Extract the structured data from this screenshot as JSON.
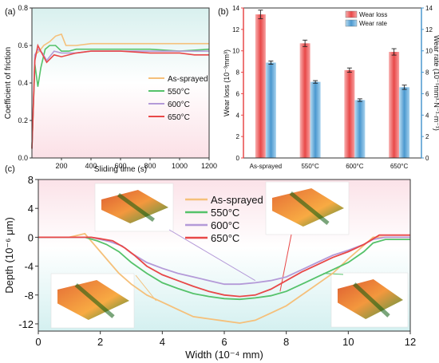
{
  "chart_data": [
    {
      "panel_label": "(a)",
      "type": "line",
      "xlabel": "Sliding time (s)",
      "ylabel": "Coefficient of friction",
      "xlim": [
        0,
        1200
      ],
      "ylim": [
        0.0,
        0.8
      ],
      "xticks": [
        200,
        400,
        600,
        800,
        1000,
        1200
      ],
      "yticks": [
        0.0,
        0.2,
        0.4,
        0.6,
        0.8
      ],
      "legend_position": "center-right",
      "background": "pink-to-cyan gradient",
      "series": [
        {
          "name": "As-sprayed",
          "color": "#f5c07a",
          "x": [
            0,
            20,
            50,
            80,
            120,
            160,
            200,
            230,
            260,
            300,
            400,
            600,
            800,
            1000,
            1200
          ],
          "y": [
            0.05,
            0.55,
            0.57,
            0.6,
            0.62,
            0.65,
            0.66,
            0.6,
            0.6,
            0.6,
            0.61,
            0.61,
            0.61,
            0.61,
            0.61
          ]
        },
        {
          "name": "550°C",
          "color": "#55c26a",
          "x": [
            0,
            20,
            40,
            60,
            90,
            120,
            160,
            200,
            250,
            300,
            400,
            600,
            800,
            1000,
            1200
          ],
          "y": [
            0.05,
            0.5,
            0.38,
            0.48,
            0.58,
            0.6,
            0.6,
            0.57,
            0.57,
            0.58,
            0.58,
            0.58,
            0.58,
            0.57,
            0.58
          ]
        },
        {
          "name": "600°C",
          "color": "#b49ad8",
          "x": [
            0,
            20,
            40,
            70,
            100,
            150,
            200,
            300,
            400,
            600,
            800,
            1000,
            1200
          ],
          "y": [
            0.05,
            0.55,
            0.58,
            0.56,
            0.52,
            0.57,
            0.56,
            0.56,
            0.57,
            0.57,
            0.57,
            0.57,
            0.57
          ]
        },
        {
          "name": "650°C",
          "color": "#e84848",
          "x": [
            0,
            20,
            40,
            60,
            100,
            150,
            200,
            300,
            400,
            600,
            800,
            1000,
            1100,
            1200
          ],
          "y": [
            0.05,
            0.52,
            0.6,
            0.57,
            0.51,
            0.55,
            0.54,
            0.56,
            0.57,
            0.57,
            0.56,
            0.56,
            0.55,
            0.55
          ]
        }
      ]
    },
    {
      "panel_label": "(b)",
      "type": "bar",
      "categories": [
        "As-sprayed",
        "550°C",
        "600°C",
        "650°C"
      ],
      "ylabel": "Wear loss (10⁻³mm³)",
      "ylabel2": "Wear rate (10⁻⁵mm³·N⁻¹·m⁻¹)",
      "ylim": [
        0,
        14
      ],
      "ylim2": [
        0,
        14
      ],
      "yticks": [
        0,
        2,
        4,
        6,
        8,
        10,
        12,
        14
      ],
      "legend_position": "top-right",
      "series": [
        {
          "name": "Wear loss",
          "color": "#ee5c5c",
          "axis": "left",
          "values": [
            13.4,
            10.7,
            8.2,
            9.9
          ],
          "errors": [
            0.4,
            0.3,
            0.2,
            0.3
          ]
        },
        {
          "name": "Wear rate",
          "color": "#5aa6d6",
          "axis": "right",
          "values": [
            8.9,
            7.1,
            5.4,
            6.6
          ],
          "errors": [
            0.15,
            0.12,
            0.12,
            0.2
          ]
        }
      ]
    },
    {
      "panel_label": "(c)",
      "type": "line",
      "xlabel": "Width (10⁻⁴ mm)",
      "ylabel": "Depth (10⁻⁶ μm)",
      "xlim": [
        0,
        12
      ],
      "ylim": [
        -13,
        8
      ],
      "xticks": [
        0,
        2,
        4,
        6,
        8,
        10,
        12
      ],
      "yticks": [
        -12,
        -8,
        -4,
        0,
        4,
        8
      ],
      "legend_position": "top-center",
      "insets": [
        "3D wear track (As-sprayed)",
        "3D wear track (550°C)",
        "3D wear track (600°C)",
        "3D wear track (650°C)"
      ],
      "series": [
        {
          "name": "As-sprayed",
          "color": "#f5c07a",
          "x": [
            0,
            1.0,
            1.5,
            1.8,
            2.2,
            2.6,
            3.0,
            3.5,
            4.0,
            4.5,
            5.0,
            5.5,
            6.0,
            6.5,
            7.0,
            7.5,
            8.0,
            8.5,
            9.0,
            9.5,
            10.0,
            10.4,
            10.8,
            11.2,
            12
          ],
          "y": [
            0,
            0,
            0.5,
            -1,
            -3,
            -5,
            -6.5,
            -8,
            -9,
            -10,
            -11,
            -11.3,
            -11.6,
            -11.9,
            -11.5,
            -10.5,
            -9.5,
            -8,
            -6.5,
            -5,
            -3,
            -1.5,
            0,
            0,
            0
          ]
        },
        {
          "name": "550°C",
          "color": "#55c26a",
          "x": [
            0,
            1.5,
            1.9,
            2.2,
            2.6,
            3.0,
            3.5,
            4.0,
            4.5,
            5.0,
            5.5,
            6.0,
            6.5,
            7.0,
            7.5,
            8.0,
            8.5,
            9.0,
            9.5,
            10.0,
            10.5,
            10.8,
            11.2,
            12
          ],
          "y": [
            0,
            0,
            -0.5,
            -1,
            -2,
            -3.5,
            -5,
            -6.3,
            -7.1,
            -7.8,
            -8.2,
            -8.5,
            -8.6,
            -8.4,
            -8.1,
            -7.5,
            -6.5,
            -5.5,
            -4.5,
            -3.5,
            -2,
            -0.8,
            -0.3,
            -0.3
          ]
        },
        {
          "name": "600°C",
          "color": "#b49ad8",
          "x": [
            0,
            1.7,
            2.0,
            2.3,
            2.7,
            3.0,
            3.5,
            4.0,
            4.5,
            5.0,
            5.5,
            6.0,
            6.5,
            7.0,
            7.5,
            8.0,
            8.5,
            9.0,
            9.5,
            10.0,
            10.5,
            10.8,
            11.2,
            12
          ],
          "y": [
            0,
            0,
            -0.3,
            -0.6,
            -1.2,
            -2.2,
            -3.5,
            -4.3,
            -5,
            -5.5,
            -6,
            -6.5,
            -6.5,
            -6.3,
            -6,
            -5.5,
            -4.5,
            -3.5,
            -2.5,
            -1.8,
            -1,
            -0.3,
            0,
            0
          ]
        },
        {
          "name": "650°C",
          "color": "#e84848",
          "x": [
            0,
            1.7,
            2.0,
            2.4,
            2.8,
            3.1,
            3.5,
            4.0,
            4.5,
            5.0,
            5.5,
            6.0,
            6.5,
            7.0,
            7.5,
            8.0,
            8.5,
            9.0,
            9.5,
            10.0,
            10.5,
            11.0,
            11.2,
            12
          ],
          "y": [
            0,
            0,
            -0.2,
            -0.5,
            -1.5,
            -2.5,
            -4,
            -5.2,
            -6,
            -6.8,
            -7.5,
            -8,
            -8.2,
            -8,
            -7.2,
            -6,
            -4.8,
            -3.8,
            -2.8,
            -2,
            -1,
            0.3,
            0.3,
            0.3
          ]
        }
      ]
    }
  ]
}
